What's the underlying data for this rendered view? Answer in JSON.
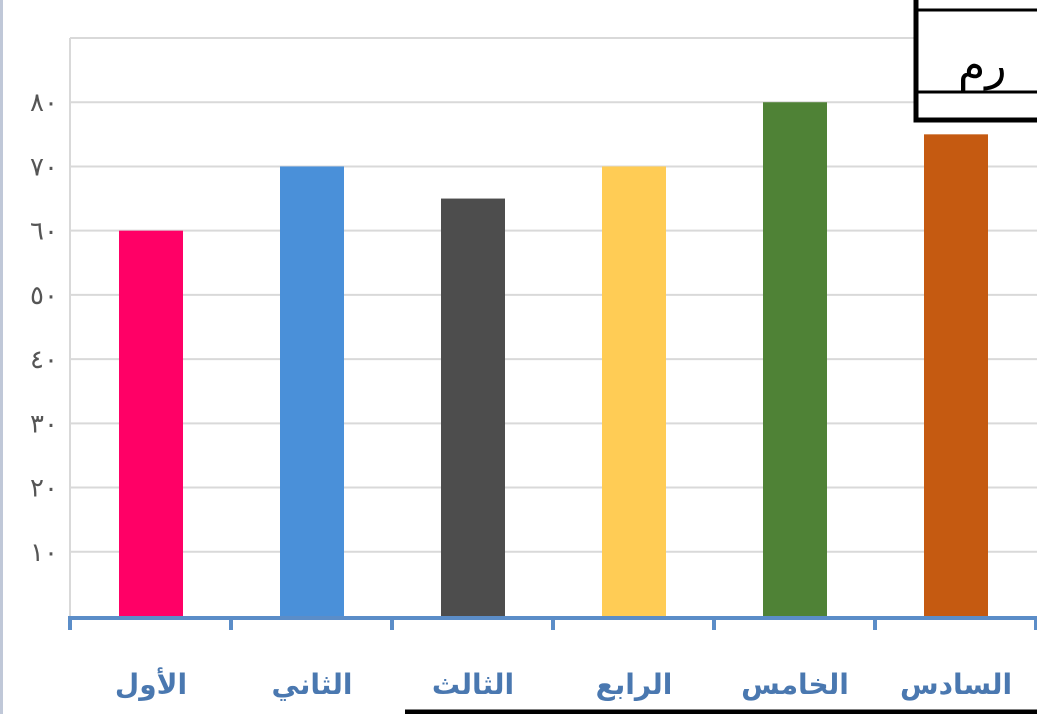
{
  "chart_data": {
    "type": "bar",
    "categories": [
      "الأول",
      "الثاني",
      "الثالث",
      "الرابع",
      "الخامس",
      "السادس"
    ],
    "values": [
      60,
      70,
      65,
      70,
      80,
      75
    ],
    "colors": [
      "#ff0066",
      "#4a90d9",
      "#4d4d4d",
      "#ffcc55",
      "#4f8236",
      "#c55a11"
    ],
    "yticks": [
      {
        "value": 10,
        "label": "١٠"
      },
      {
        "value": 20,
        "label": "٢٠"
      },
      {
        "value": 30,
        "label": "٣٠"
      },
      {
        "value": 40,
        "label": "٤٠"
      },
      {
        "value": 50,
        "label": "٥٠"
      },
      {
        "value": 60,
        "label": "٦٠"
      },
      {
        "value": 70,
        "label": "٧٠"
      },
      {
        "value": 80,
        "label": "٨٠"
      }
    ],
    "ylim": [
      0,
      90
    ],
    "grid": true,
    "axis_color": "#5b8dc8",
    "grid_color": "#d9d9d9"
  },
  "overlay": {
    "box_text": "رم"
  }
}
